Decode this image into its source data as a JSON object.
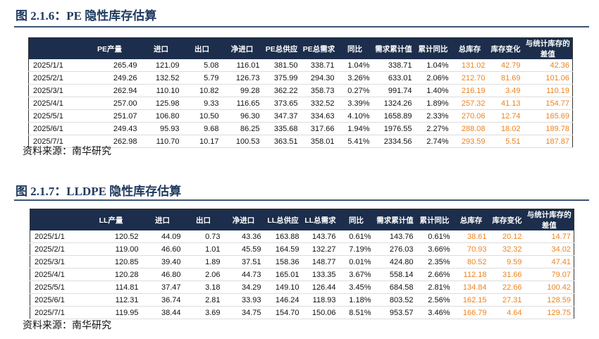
{
  "tables": [
    {
      "title": "图 2.1.6：PE 隐性库存估算",
      "header": [
        "",
        "PE产量",
        "进口",
        "出口",
        "净进口",
        "PE总供应",
        "PE总需求",
        "同比",
        "需求累计值",
        "累计同比",
        "总库存",
        "库存变化",
        "与统计库存的差值"
      ],
      "rows": [
        [
          "2025/1/1",
          "265.49",
          "121.09",
          "5.08",
          "116.01",
          "381.50",
          "338.71",
          "1.04%",
          "338.71",
          "1.04%",
          "131.02",
          "42.79",
          "42.36"
        ],
        [
          "2025/2/1",
          "249.26",
          "132.52",
          "5.79",
          "126.73",
          "375.99",
          "294.30",
          "3.26%",
          "633.01",
          "2.06%",
          "212.70",
          "81.69",
          "101.06"
        ],
        [
          "2025/3/1",
          "262.94",
          "110.10",
          "10.82",
          "99.28",
          "362.22",
          "358.73",
          "0.27%",
          "991.74",
          "1.40%",
          "216.19",
          "3.49",
          "110.19"
        ],
        [
          "2025/4/1",
          "257.00",
          "125.98",
          "9.33",
          "116.65",
          "373.65",
          "332.52",
          "3.39%",
          "1324.26",
          "1.89%",
          "257.32",
          "41.13",
          "154.77"
        ],
        [
          "2025/5/1",
          "251.07",
          "106.80",
          "10.50",
          "96.30",
          "347.37",
          "334.63",
          "4.10%",
          "1658.89",
          "2.33%",
          "270.06",
          "12.74",
          "165.69"
        ],
        [
          "2025/6/1",
          "249.43",
          "95.93",
          "9.68",
          "86.25",
          "335.68",
          "317.66",
          "1.94%",
          "1976.55",
          "2.27%",
          "288.08",
          "18.02",
          "189.78"
        ],
        [
          "2025/7/1",
          "262.98",
          "110.70",
          "10.17",
          "100.53",
          "363.51",
          "358.01",
          "5.41%",
          "2334.56",
          "2.74%",
          "293.59",
          "5.51",
          "187.87"
        ]
      ],
      "source": "资料来源：南华研究"
    },
    {
      "title": "图 2.1.7：LLDPE 隐性库存估算",
      "header": [
        "",
        "LL产量",
        "进口",
        "出口",
        "净进口",
        "LL总供应",
        "LL总需求",
        "同比",
        "需求累计值",
        "累计同比",
        "总库存",
        "库存变化",
        "与统计库存的差值"
      ],
      "rows": [
        [
          "2025/1/1",
          "120.52",
          "44.09",
          "0.73",
          "43.36",
          "163.88",
          "143.76",
          "0.61%",
          "143.76",
          "0.61%",
          "38.61",
          "20.12",
          "14.77"
        ],
        [
          "2025/2/1",
          "119.00",
          "46.60",
          "1.01",
          "45.59",
          "164.59",
          "132.27",
          "7.19%",
          "276.03",
          "3.66%",
          "70.93",
          "32.32",
          "34.02"
        ],
        [
          "2025/3/1",
          "120.85",
          "39.40",
          "1.89",
          "37.51",
          "158.36",
          "148.77",
          "0.01%",
          "424.80",
          "2.35%",
          "80.52",
          "9.59",
          "47.41"
        ],
        [
          "2025/4/1",
          "120.28",
          "46.80",
          "2.06",
          "44.73",
          "165.01",
          "133.35",
          "3.67%",
          "558.14",
          "2.66%",
          "112.18",
          "31.66",
          "79.07"
        ],
        [
          "2025/5/1",
          "114.81",
          "37.47",
          "3.18",
          "34.29",
          "149.10",
          "126.44",
          "3.45%",
          "684.58",
          "2.81%",
          "134.84",
          "22.66",
          "100.42"
        ],
        [
          "2025/6/1",
          "112.31",
          "36.74",
          "2.81",
          "33.93",
          "146.24",
          "118.93",
          "1.18%",
          "803.52",
          "2.56%",
          "162.15",
          "27.31",
          "128.59"
        ],
        [
          "2025/7/1",
          "119.95",
          "38.44",
          "3.69",
          "34.75",
          "154.70",
          "150.06",
          "8.51%",
          "953.57",
          "3.46%",
          "166.79",
          "4.64",
          "129.75"
        ]
      ],
      "source": "资料来源：南华研究"
    }
  ]
}
